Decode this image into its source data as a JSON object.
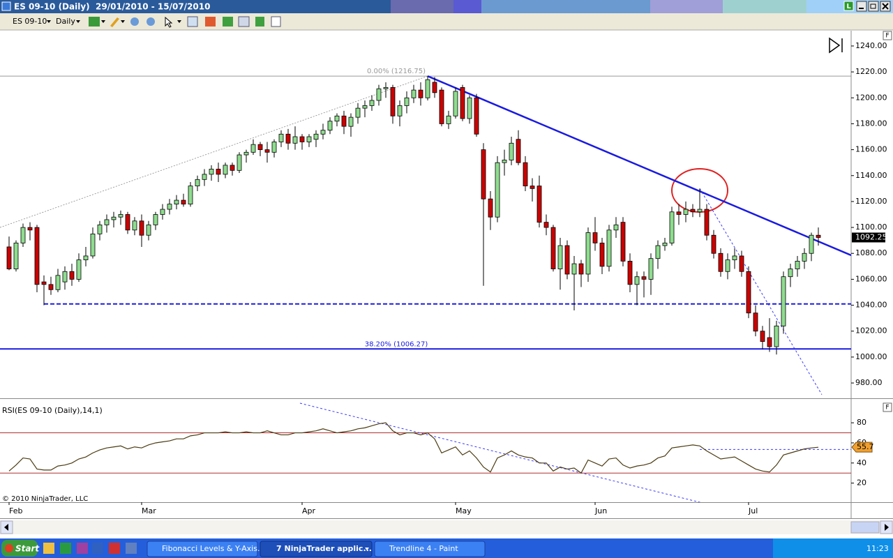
{
  "window": {
    "title": "ES 09-10 (Daily)  29/01/2010 - 15/07/2010",
    "button": "L"
  },
  "toolbar": {
    "instrument": "ES 09-10",
    "interval": "Daily"
  },
  "chart_data": {
    "type": "candlestick",
    "up_color": "#8fdc8f",
    "down_color": "#cc0000",
    "xlim": [
      -1.3,
      120.7
    ],
    "ylim": [
      968.2,
      1251.8
    ],
    "xticks": [
      {
        "value": 0,
        "label": "Feb"
      },
      {
        "value": 19,
        "label": "Mar"
      },
      {
        "value": 42,
        "label": "Apr"
      },
      {
        "value": 64,
        "label": "May"
      },
      {
        "value": 84,
        "label": "Jun"
      },
      {
        "value": 106,
        "label": "Jul"
      }
    ],
    "yticks": [
      {
        "value": 980,
        "label": "980.00"
      },
      {
        "value": 1000,
        "label": "1000.00"
      },
      {
        "value": 1020,
        "label": "1020.00"
      },
      {
        "value": 1040,
        "label": "1040.00"
      },
      {
        "value": 1060,
        "label": "1060.00"
      },
      {
        "value": 1080,
        "label": "1080.00"
      },
      {
        "value": 1100,
        "label": "1100.00"
      },
      {
        "value": 1120,
        "label": "1120.00"
      },
      {
        "value": 1140,
        "label": "1140.00"
      },
      {
        "value": 1160,
        "label": "1160.00"
      },
      {
        "value": 1180,
        "label": "1180.00"
      },
      {
        "value": 1200,
        "label": "1200.00"
      },
      {
        "value": 1220,
        "label": "1220.00"
      },
      {
        "value": 1240,
        "label": "1240.00"
      }
    ],
    "open": [
      1085,
      1068,
      1088,
      1100,
      1100,
      1058,
      1056,
      1052,
      1058,
      1066,
      1060,
      1075,
      1078,
      1095,
      1102,
      1106,
      1108,
      1110,
      1098,
      1105,
      1094,
      1102,
      1110,
      1114,
      1118,
      1121,
      1118,
      1132,
      1137,
      1141,
      1145,
      1141,
      1148,
      1144,
      1156,
      1158,
      1164,
      1160,
      1158,
      1166,
      1172,
      1165,
      1170,
      1166,
      1168,
      1172,
      1175,
      1182,
      1186,
      1178,
      1185,
      1192,
      1194,
      1198,
      1207,
      1208,
      1186,
      1194,
      1200,
      1206,
      1200,
      1212,
      1206,
      1180,
      1186,
      1208,
      1184,
      1200,
      1160,
      1122,
      1108,
      1150,
      1152,
      1168,
      1150,
      1132,
      1132,
      1104,
      1100,
      1068,
      1086,
      1064,
      1072,
      1064,
      1096,
      1088,
      1070,
      1098,
      1104,
      1074,
      1056,
      1062,
      1060,
      1076,
      1086,
      1088,
      1112,
      1110,
      1114,
      1112,
      1114,
      1094,
      1080,
      1066,
      1075,
      1078,
      1066,
      1034,
      1020,
      1015,
      1008,
      1024,
      1062,
      1068,
      1074,
      1080,
      1094
    ],
    "high": [
      1093,
      1090,
      1103,
      1104,
      1102,
      1063,
      1062,
      1068,
      1070,
      1072,
      1080,
      1085,
      1100,
      1105,
      1110,
      1112,
      1113,
      1112,
      1108,
      1110,
      1105,
      1112,
      1118,
      1122,
      1125,
      1126,
      1135,
      1140,
      1145,
      1148,
      1150,
      1150,
      1150,
      1158,
      1160,
      1168,
      1166,
      1166,
      1168,
      1175,
      1176,
      1178,
      1172,
      1172,
      1175,
      1180,
      1185,
      1188,
      1190,
      1188,
      1196,
      1198,
      1202,
      1210,
      1212,
      1210,
      1198,
      1205,
      1210,
      1212,
      1216.75,
      1216,
      1208,
      1190,
      1208,
      1210,
      1202,
      1203,
      1165,
      1128,
      1155,
      1160,
      1170,
      1175,
      1155,
      1138,
      1140,
      1110,
      1102,
      1092,
      1090,
      1078,
      1075,
      1100,
      1108,
      1092,
      1102,
      1108,
      1108,
      1080,
      1066,
      1066,
      1080,
      1090,
      1092,
      1116,
      1118,
      1120,
      1118,
      1130,
      1118,
      1098,
      1084,
      1080,
      1084,
      1082,
      1070,
      1040,
      1024,
      1030,
      1028,
      1066,
      1072,
      1078,
      1084,
      1096,
      1100
    ],
    "low": [
      1067,
      1066,
      1085,
      1090,
      1050,
      1040,
      1048,
      1050,
      1052,
      1055,
      1058,
      1070,
      1076,
      1090,
      1096,
      1100,
      1102,
      1095,
      1094,
      1085,
      1090,
      1098,
      1106,
      1110,
      1114,
      1116,
      1116,
      1128,
      1132,
      1136,
      1135,
      1138,
      1140,
      1142,
      1150,
      1156,
      1155,
      1150,
      1154,
      1162,
      1160,
      1160,
      1160,
      1162,
      1162,
      1168,
      1172,
      1178,
      1172,
      1170,
      1180,
      1185,
      1190,
      1194,
      1200,
      1180,
      1178,
      1188,
      1196,
      1194,
      1198,
      1200,
      1178,
      1176,
      1184,
      1182,
      1180,
      1170,
      1055,
      1098,
      1104,
      1140,
      1148,
      1148,
      1128,
      1120,
      1100,
      1094,
      1066,
      1052,
      1060,
      1036,
      1054,
      1058,
      1082,
      1064,
      1066,
      1092,
      1070,
      1050,
      1040,
      1046,
      1048,
      1068,
      1082,
      1086,
      1102,
      1104,
      1108,
      1108,
      1090,
      1076,
      1062,
      1060,
      1068,
      1062,
      1030,
      1016,
      1006,
      1004,
      1002,
      1018,
      1054,
      1062,
      1068,
      1074,
      1086
    ],
    "close": [
      1068,
      1088,
      1100,
      1098,
      1056,
      1056,
      1052,
      1063,
      1066,
      1060,
      1075,
      1078,
      1095,
      1102,
      1106,
      1108,
      1110,
      1098,
      1105,
      1094,
      1102,
      1110,
      1114,
      1118,
      1121,
      1118,
      1132,
      1137,
      1141,
      1145,
      1141,
      1148,
      1144,
      1156,
      1158,
      1164,
      1160,
      1158,
      1166,
      1172,
      1165,
      1170,
      1166,
      1170,
      1172,
      1175,
      1182,
      1186,
      1178,
      1185,
      1192,
      1194,
      1198,
      1207,
      1208,
      1186,
      1194,
      1200,
      1206,
      1200,
      1214,
      1204,
      1180,
      1186,
      1205,
      1184,
      1200,
      1172,
      1122,
      1108,
      1150,
      1152,
      1165,
      1150,
      1132,
      1130,
      1104,
      1100,
      1068,
      1086,
      1064,
      1072,
      1064,
      1096,
      1088,
      1070,
      1098,
      1102,
      1074,
      1056,
      1062,
      1060,
      1076,
      1086,
      1088,
      1112,
      1110,
      1114,
      1112,
      1114,
      1094,
      1080,
      1066,
      1075,
      1078,
      1066,
      1034,
      1020,
      1012,
      1008,
      1024,
      1062,
      1068,
      1074,
      1080,
      1094,
      1092.25
    ],
    "fib_levels": [
      {
        "label": "0.00% (1216.75)",
        "value": 1216.75,
        "color": "#999999"
      },
      {
        "label": "38.20% (1006.27)",
        "value": 1006.27,
        "color": "#1a1ae0"
      }
    ],
    "drawings": [
      {
        "style": "dotted",
        "color": "#888888",
        "start": [
          -1.3,
          1100
        ],
        "end": [
          60,
          1216.75
        ]
      },
      {
        "style": "solid",
        "color": "#1a1ae0",
        "start": [
          60,
          1216.75
        ],
        "end": [
          120.7,
          1078.5
        ]
      },
      {
        "style": "thin-dashed",
        "color": "#3a3aff",
        "start": [
          99,
          1130
        ],
        "end": [
          116.5,
          971
        ]
      },
      {
        "style": "dashed",
        "color": "#1a1ae0",
        "start": [
          5,
          1041
        ],
        "end": [
          120.7,
          1041
        ]
      }
    ],
    "price_panel_button": "F",
    "rsi": {
      "name": "RSI(ES 09-10 (Daily),14,1)",
      "color": "#4a3a10",
      "ylim": [
        1,
        103
      ],
      "yticks": [
        20,
        40,
        60,
        80
      ],
      "levels": [
        {
          "value": 30,
          "color": "#b03030"
        },
        {
          "value": 70,
          "color": "#b03030"
        }
      ],
      "values": [
        32,
        38,
        45,
        44,
        34,
        33,
        33,
        37,
        38,
        40,
        44,
        46,
        50,
        53,
        55,
        56,
        57,
        54,
        56,
        55,
        58,
        60,
        61,
        62,
        64,
        64,
        67,
        68,
        70,
        70,
        70,
        71,
        70,
        70,
        71,
        70,
        70,
        72,
        70,
        68,
        68,
        70,
        70,
        71,
        72,
        74,
        72,
        70,
        71,
        72,
        74,
        75,
        77,
        79,
        80,
        72,
        68,
        70,
        70,
        68,
        70,
        64,
        50,
        53,
        56,
        48,
        52,
        45,
        36,
        31,
        45,
        48,
        52,
        48,
        46,
        45,
        40,
        40,
        32,
        36,
        34,
        35,
        30,
        43,
        40,
        37,
        44,
        45,
        38,
        35,
        37,
        38,
        40,
        45,
        47,
        55,
        56,
        57,
        58,
        57,
        52,
        48,
        44,
        45,
        46,
        42,
        38,
        34,
        32,
        31,
        38,
        48,
        50,
        52,
        54,
        55,
        55.7
      ],
      "tag_color": "#f0a030",
      "drawings": [
        {
          "style": "thin-dashed",
          "color": "#3a3aff",
          "start": [
            41.7,
            99.5
          ],
          "end": [
            99.2,
            0.6
          ]
        },
        {
          "style": "thin-dashed",
          "color": "#3a3aff",
          "start": [
            99,
            53.5
          ],
          "end": [
            120.7,
            53.5
          ]
        }
      ],
      "panel_button": "F"
    },
    "copyright": "© 2010 NinjaTrader, LLC"
  },
  "taskbar": {
    "start": "Start",
    "items": [
      "Fibonacci Levels & Y-Axis...",
      "7 NinjaTrader applic...",
      "Trendline 4 - Paint"
    ],
    "clock": "11:23"
  }
}
